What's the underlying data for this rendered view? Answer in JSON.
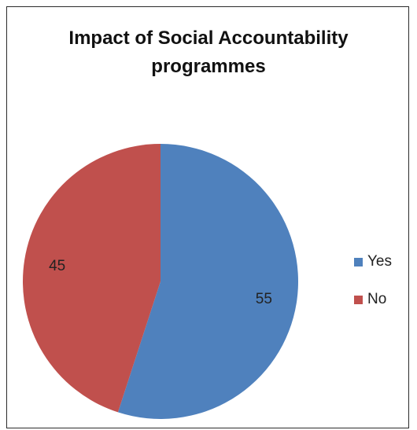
{
  "chart_data": {
    "type": "pie",
    "title_lines": [
      "Impact of Social Accountability",
      "programmes"
    ],
    "slices": [
      {
        "label": "Yes",
        "value": 55,
        "color": "#4f81bd"
      },
      {
        "label": "No",
        "value": 45,
        "color": "#c0504d"
      }
    ],
    "legend_position": "right",
    "start_angle": "top, clockwise"
  }
}
